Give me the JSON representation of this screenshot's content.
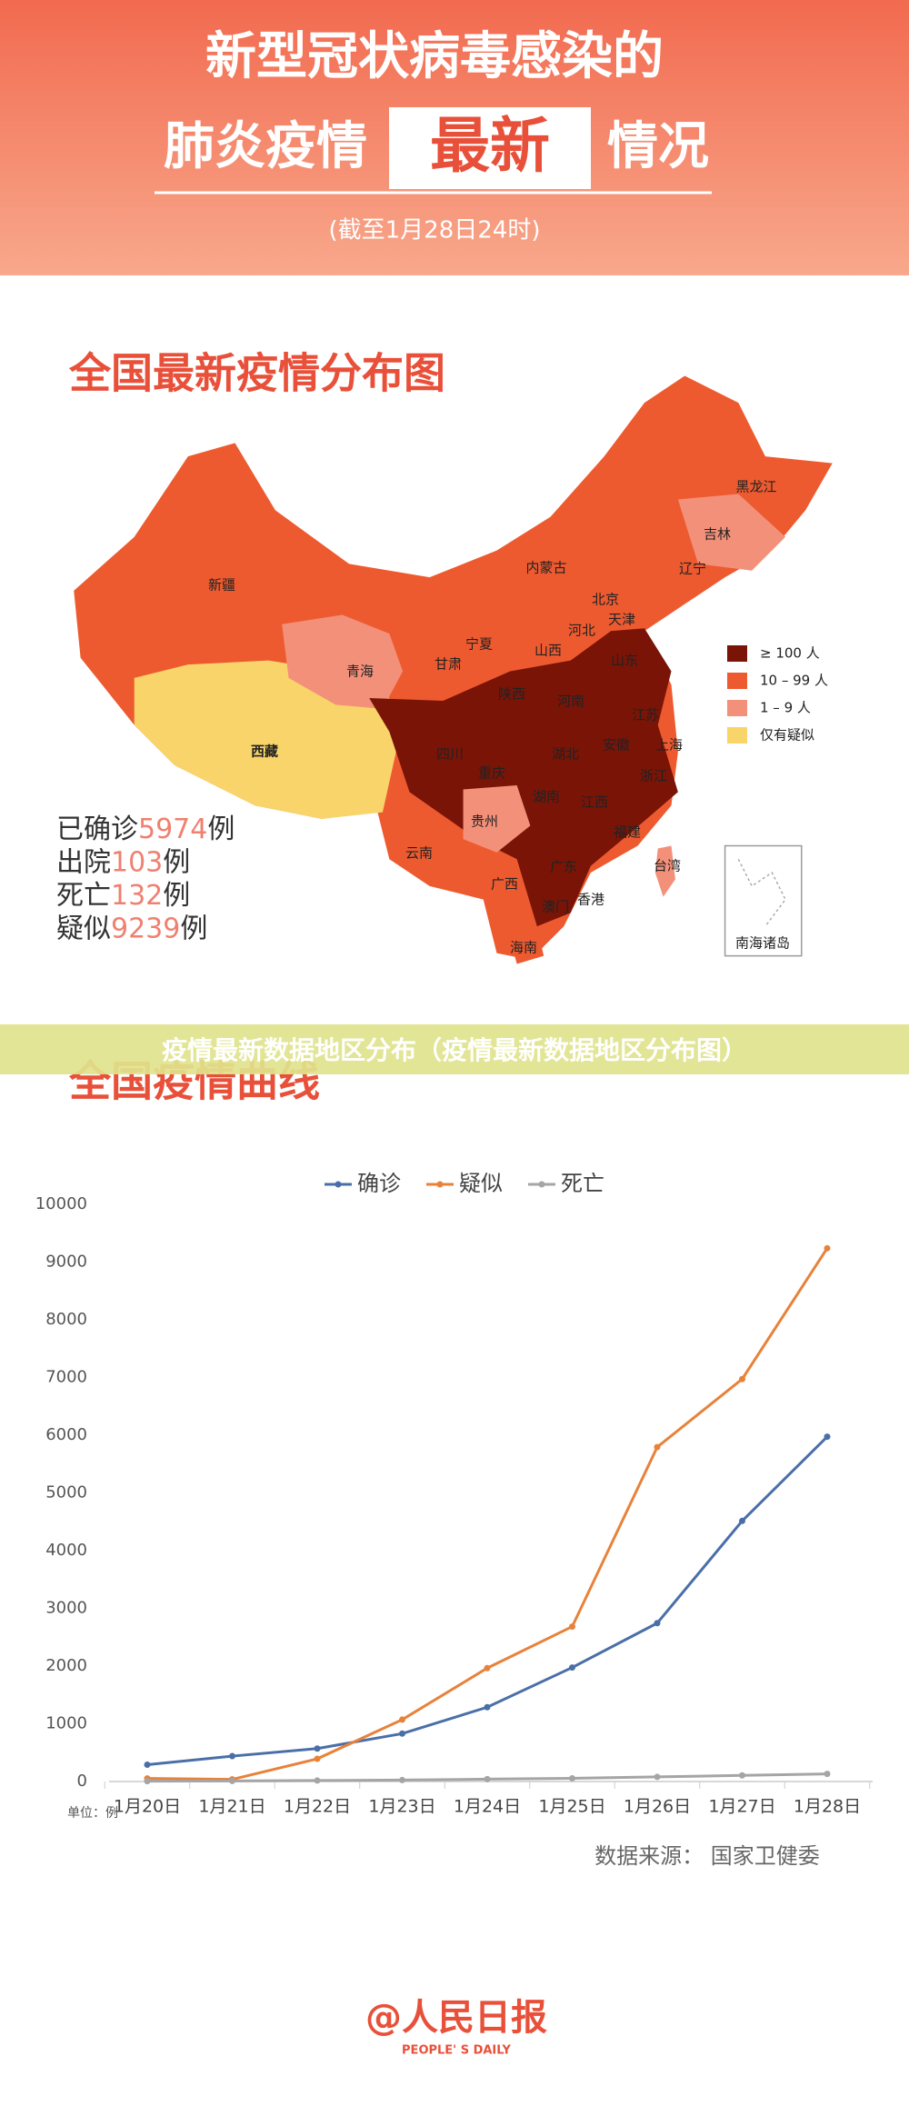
{
  "header": {
    "title_line1": "新型冠状病毒感染的",
    "title_line2_left": "肺炎疫情",
    "title_line2_highlight": "最新",
    "title_line2_right": "情况",
    "date": "(截至1月28日24时)"
  },
  "map": {
    "title": "全国最新疫情分布图",
    "legend": [
      {
        "label": "≥ 100 人",
        "color": "#7a1407"
      },
      {
        "label": "10 – 99 人",
        "color": "#ee5a2f"
      },
      {
        "label": "1 – 9 人",
        "color": "#f3907a"
      },
      {
        "label": "仅有疑似",
        "color": "#f9d46a"
      }
    ],
    "provinces": [
      "黑龙江",
      "吉林",
      "辽宁",
      "内蒙古",
      "北京",
      "天津",
      "河北",
      "山西",
      "山东",
      "宁夏",
      "甘肃",
      "新疆",
      "青海",
      "西藏",
      "陕西",
      "河南",
      "江苏",
      "安徽",
      "上海",
      "四川",
      "湖北",
      "重庆",
      "浙江",
      "湖南",
      "江西",
      "贵州",
      "福建",
      "云南",
      "广西",
      "广东",
      "台湾",
      "香港",
      "澳门",
      "海南"
    ],
    "inset": "南海诸岛",
    "stats": [
      {
        "label": "已确诊",
        "value": 5974,
        "unit": "例"
      },
      {
        "label": "出院",
        "value": 103,
        "unit": "例"
      },
      {
        "label": "死亡",
        "value": 132,
        "unit": "例"
      },
      {
        "label": "疑似",
        "value": 9239,
        "unit": "例"
      }
    ]
  },
  "banner": "疫情最新数据地区分布（疫情最新数据地区分布图）",
  "chart_data": {
    "type": "line",
    "title": "全国疫情曲线",
    "unit_label": "单位：例",
    "categories": [
      "1月20日",
      "1月21日",
      "1月22日",
      "1月23日",
      "1月24日",
      "1月25日",
      "1月26日",
      "1月27日",
      "1月28日"
    ],
    "series": [
      {
        "name": "确诊",
        "color": "#4a6fa8",
        "values": [
          291,
          440,
          571,
          830,
          1287,
          1975,
          2744,
          4515,
          5974
        ]
      },
      {
        "name": "疑似",
        "color": "#e8823a",
        "values": [
          54,
          37,
          393,
          1072,
          1965,
          2684,
          5794,
          6973,
          9239
        ]
      },
      {
        "name": "死亡",
        "color": "#a5a5a5",
        "values": [
          6,
          9,
          17,
          25,
          41,
          56,
          80,
          106,
          132
        ]
      }
    ],
    "ylim": [
      0,
      10000
    ],
    "yticks": [
      0,
      1000,
      2000,
      3000,
      4000,
      5000,
      6000,
      7000,
      8000,
      9000,
      10000
    ],
    "grid": false
  },
  "footer": {
    "source": "数据来源：  国家卫健委",
    "logo": "@人民日报",
    "logo_en": "PEOPLE' S DAILY"
  }
}
